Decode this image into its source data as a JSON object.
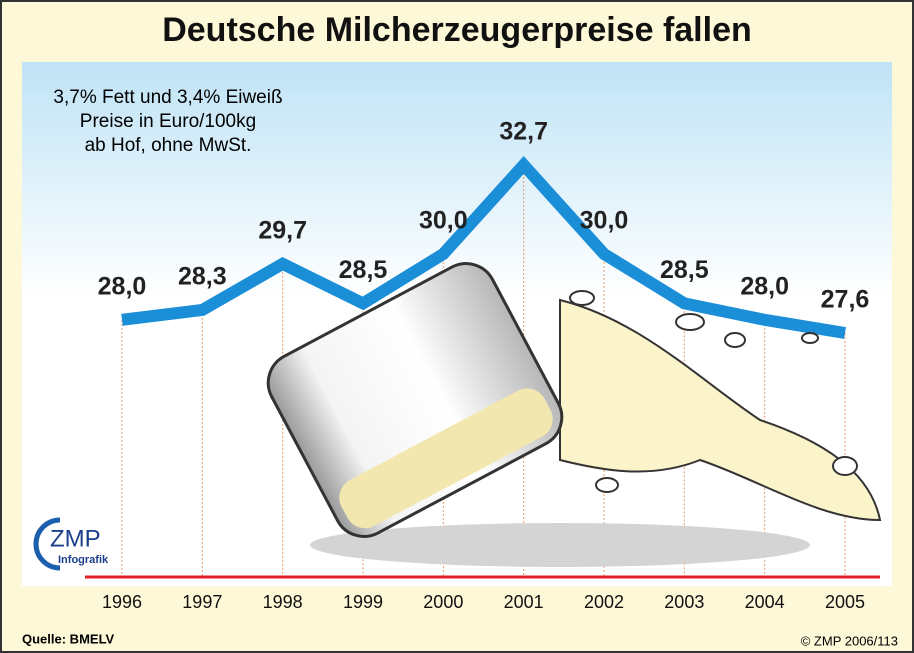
{
  "chart_data": {
    "type": "line",
    "title": "Deutsche Milcherzeugerpreise fallen",
    "annotations": [
      "3,7% Fett und 3,4% Eiweiß",
      "Preise in Euro/100kg",
      "ab Hof, ohne MwSt."
    ],
    "categories": [
      "1996",
      "1997",
      "1998",
      "1999",
      "2000",
      "2001",
      "2002",
      "2003",
      "2004",
      "2005"
    ],
    "values": [
      28.0,
      28.3,
      29.7,
      28.5,
      30.0,
      32.7,
      30.0,
      28.5,
      28.0,
      27.6
    ],
    "value_labels": [
      "28,0",
      "28,3",
      "29,7",
      "28,5",
      "30,0",
      "32,7",
      "30,0",
      "28,5",
      "28,0",
      "27,6"
    ],
    "color": "#1b8ed8",
    "logo": {
      "name": "ZMP",
      "tagline": "Infografik"
    },
    "source": "Quelle: BMELV",
    "copyright": "© ZMP 2006/113"
  }
}
